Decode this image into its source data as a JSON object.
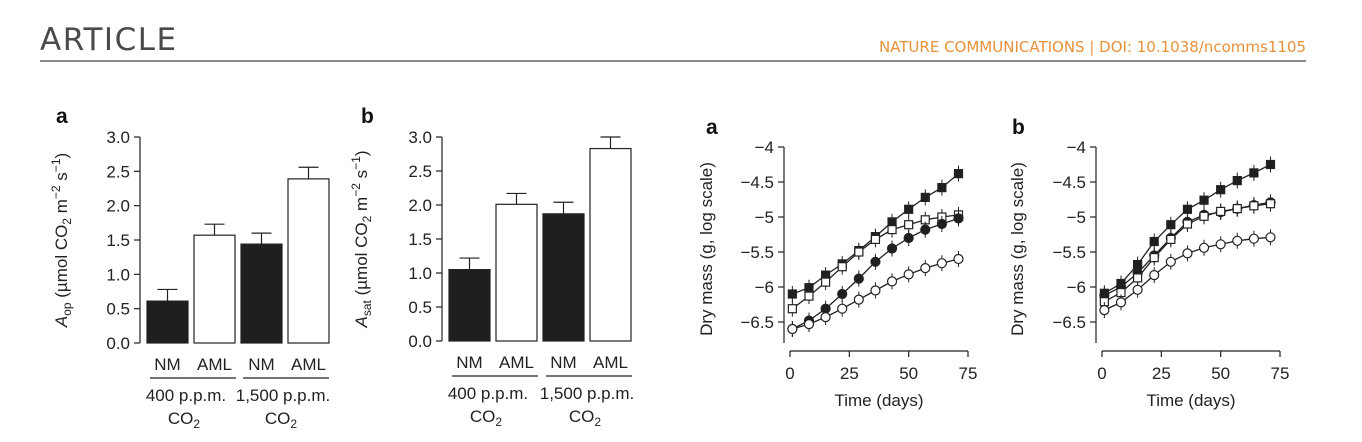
{
  "header": {
    "title": "ARTICLE",
    "journal": "NATURE COMMUNICATIONS | DOI: 10.1038/ncomms1105"
  },
  "chart_data": [
    {
      "panel_label": "a",
      "type": "bar",
      "ylabel_main": "A",
      "ylabel_sub": "op",
      "ylabel_rest": " (µmol CO",
      "ylabel_co2_sub": "2",
      "ylabel_units": " m",
      "ylabel_exp1": "−2",
      "ylabel_s": " s",
      "ylabel_exp2": "−1",
      "ylabel_close": ")",
      "ylim": [
        0,
        3.0
      ],
      "yticks": [
        "0.0",
        "0.5",
        "1.0",
        "1.5",
        "2.0",
        "2.5",
        "3.0"
      ],
      "categories": [
        "NM",
        "AML",
        "NM",
        "AML"
      ],
      "values": [
        0.61,
        1.57,
        1.44,
        2.39
      ],
      "errors": [
        0.17,
        0.16,
        0.16,
        0.17
      ],
      "fills": [
        "#1f1f1f",
        "#ffffff",
        "#1f1f1f",
        "#ffffff"
      ],
      "groups": [
        {
          "label_line1": "400 p.p.m.",
          "label_line2": "CO",
          "label_sub": "2"
        },
        {
          "label_line1": "1,500 p.p.m.",
          "label_line2": "CO",
          "label_sub": "2"
        }
      ]
    },
    {
      "panel_label": "b",
      "type": "bar",
      "ylabel_main": "A",
      "ylabel_sub": "sat",
      "ylabel_rest": " (µmol CO",
      "ylabel_co2_sub": "2",
      "ylabel_units": " m",
      "ylabel_exp1": "−2",
      "ylabel_s": " s",
      "ylabel_exp2": "−1",
      "ylabel_close": ")",
      "ylim": [
        0,
        3.0
      ],
      "yticks": [
        "0.0",
        "0.5",
        "1.0",
        "1.5",
        "2.0",
        "2.5",
        "3.0"
      ],
      "categories": [
        "NM",
        "AML",
        "NM",
        "AML"
      ],
      "values": [
        1.05,
        2.01,
        1.87,
        2.83
      ],
      "errors": [
        0.17,
        0.16,
        0.17,
        0.17
      ],
      "fills": [
        "#1f1f1f",
        "#ffffff",
        "#1f1f1f",
        "#ffffff"
      ],
      "groups": [
        {
          "label_line1": "400 p.p.m.",
          "label_line2": "CO",
          "label_sub": "2"
        },
        {
          "label_line1": "1,500 p.p.m.",
          "label_line2": "CO",
          "label_sub": "2"
        }
      ]
    },
    {
      "panel_label": "a",
      "type": "line",
      "xlabel": "Time (days)",
      "ylabel": "Dry mass (g, log scale)",
      "xlim": [
        0,
        75
      ],
      "ylim": [
        -6.8,
        -4
      ],
      "xticks": [
        "0",
        "25",
        "50",
        "75"
      ],
      "yticks": [
        "−4",
        "−4.5",
        "−5",
        "−5.5",
        "−6",
        "−6.5"
      ],
      "x": [
        1,
        8,
        15,
        22,
        29,
        36,
        43,
        50,
        57,
        64,
        71
      ],
      "series": [
        {
          "marker": "filled-square",
          "values": [
            -6.1,
            -6.01,
            -5.83,
            -5.67,
            -5.48,
            -5.28,
            -5.07,
            -4.89,
            -4.72,
            -4.58,
            -4.38
          ]
        },
        {
          "marker": "open-square",
          "values": [
            -6.31,
            -6.13,
            -5.93,
            -5.71,
            -5.5,
            -5.32,
            -5.18,
            -5.11,
            -5.04,
            -5.0,
            -4.97
          ]
        },
        {
          "marker": "filled-circle",
          "values": [
            -6.6,
            -6.48,
            -6.31,
            -6.1,
            -5.88,
            -5.64,
            -5.45,
            -5.3,
            -5.18,
            -5.1,
            -5.02
          ]
        },
        {
          "marker": "open-circle",
          "values": [
            -6.6,
            -6.53,
            -6.43,
            -6.31,
            -6.18,
            -6.05,
            -5.92,
            -5.82,
            -5.73,
            -5.66,
            -5.6
          ]
        }
      ]
    },
    {
      "panel_label": "b",
      "type": "line",
      "xlabel": "Time (days)",
      "ylabel": "Dry mass (g, log scale)",
      "xlim": [
        0,
        75
      ],
      "ylim": [
        -6.8,
        -4
      ],
      "xticks": [
        "0",
        "25",
        "50",
        "75"
      ],
      "yticks": [
        "−4",
        "−4.5",
        "−5",
        "−5.5",
        "−6",
        "−6.5"
      ],
      "x": [
        1,
        8,
        15,
        22,
        29,
        36,
        43,
        50,
        57,
        64,
        71
      ],
      "series": [
        {
          "marker": "filled-square",
          "values": [
            -6.09,
            -5.95,
            -5.68,
            -5.35,
            -5.11,
            -4.89,
            -4.76,
            -4.61,
            -4.48,
            -4.37,
            -4.25
          ]
        },
        {
          "marker": "filled-circle",
          "values": [
            -6.12,
            -6.0,
            -5.8,
            -5.55,
            -5.3,
            -5.07,
            -4.97,
            -4.93,
            -4.88,
            -4.83,
            -4.79
          ]
        },
        {
          "marker": "open-square",
          "values": [
            -6.21,
            -6.08,
            -5.87,
            -5.58,
            -5.32,
            -5.1,
            -4.99,
            -4.92,
            -4.88,
            -4.84,
            -4.81
          ]
        },
        {
          "marker": "open-circle",
          "values": [
            -6.33,
            -6.22,
            -6.04,
            -5.83,
            -5.64,
            -5.52,
            -5.44,
            -5.39,
            -5.34,
            -5.31,
            -5.29
          ]
        }
      ]
    }
  ]
}
